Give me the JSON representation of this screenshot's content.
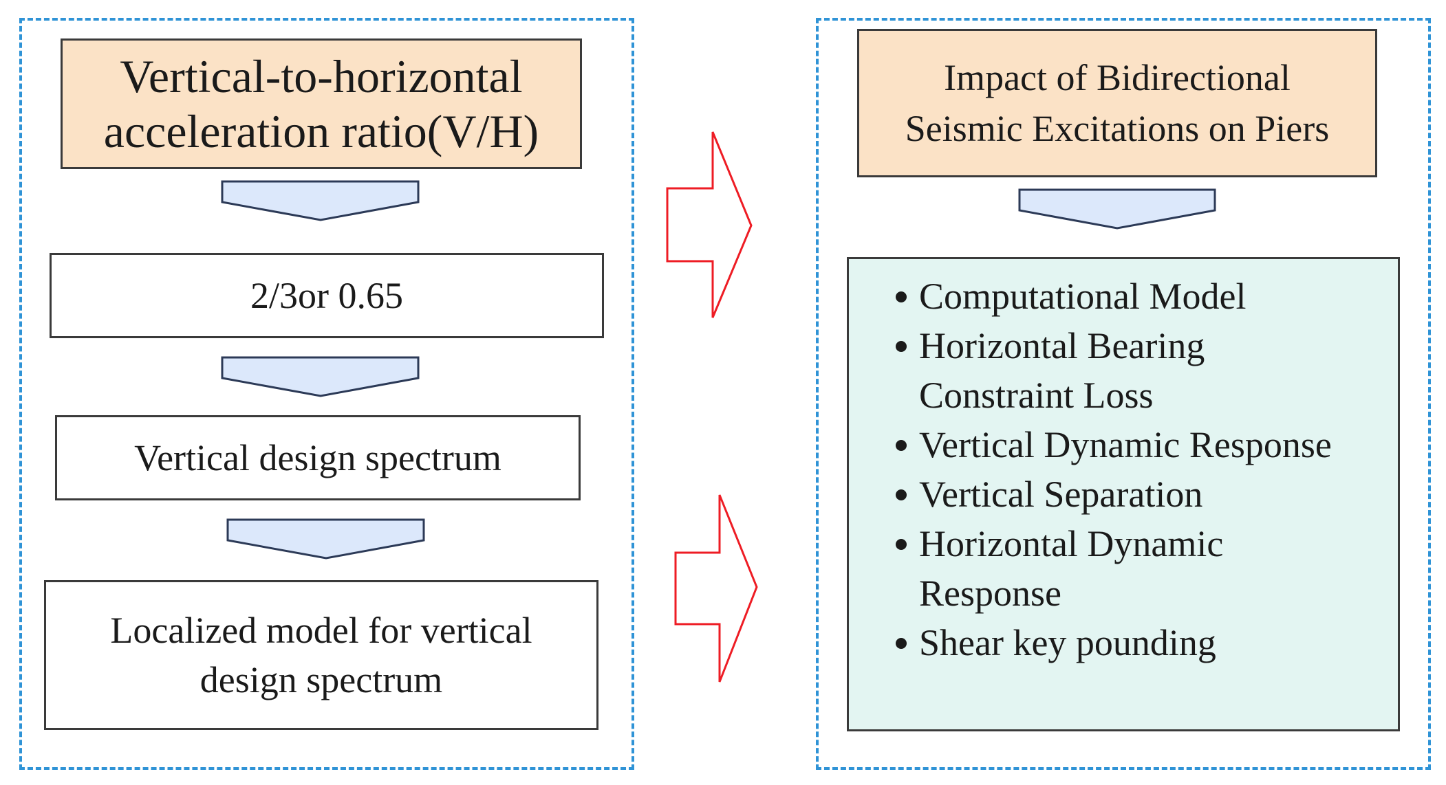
{
  "left_panel": {
    "top_box_lines": [
      "Vertical-to-horizontal",
      "acceleration ratio(V/H)"
    ],
    "ratio_box": "2/3or 0.65",
    "spectrum_box": "Vertical design spectrum",
    "local_model_lines": [
      "Localized model for vertical",
      "design spectrum"
    ]
  },
  "right_panel": {
    "top_box_lines": [
      "Impact of Bidirectional",
      "Seismic Excitations on Piers"
    ],
    "list_items": [
      [
        "Computational Model"
      ],
      [
        "Horizontal Bearing",
        "Constraint Loss"
      ],
      [
        "Vertical Dynamic Response"
      ],
      [
        "Vertical Separation"
      ],
      [
        "Horizontal Dynamic",
        "Response"
      ],
      [
        "Shear key pounding"
      ]
    ]
  },
  "colors": {
    "panel_border": "#2f93d6",
    "header_fill": "#fbe2c6",
    "list_fill": "#e3f5f2",
    "chevron_fill": "#dce8fb",
    "chevron_stroke": "#2c3a57",
    "big_arrow_stroke": "#ee1c24"
  },
  "icons": {
    "flow_down": "chevron-down-icon",
    "flow_right": "arrow-right-icon",
    "bullet": "bullet-dot-icon"
  }
}
